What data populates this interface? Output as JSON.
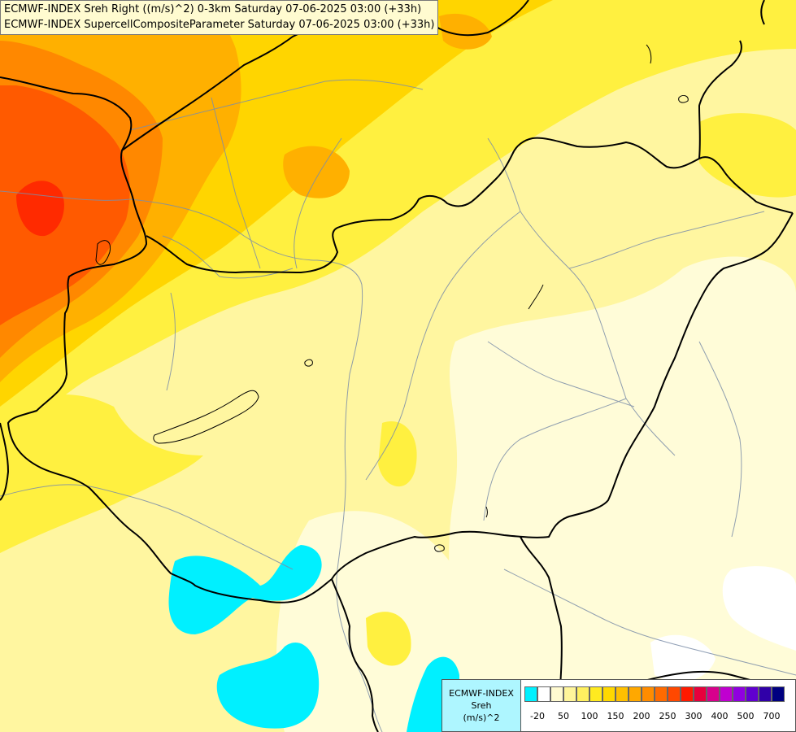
{
  "header": {
    "line1": "ECMWF-INDEX Sreh Right ((m/s)^2) 0-3km Saturday 07-06-2025 03:00 (+33h)",
    "line2": "ECMWF-INDEX SupercellCompositeParameter Saturday 07-06-2025 03:00 (+33h)"
  },
  "legend": {
    "line1": "ECMWF-INDEX",
    "line2": "Sreh",
    "line3": "(m/s)^2",
    "colors": [
      "#00f0ff",
      "#ffffff",
      "#fffad0",
      "#fff59a",
      "#fff060",
      "#ffea20",
      "#ffd800",
      "#ffc000",
      "#ffa800",
      "#ff8c00",
      "#ff6a00",
      "#ff4800",
      "#ff1a00",
      "#e8003c",
      "#d8008c",
      "#c000d0",
      "#9000e0",
      "#6000d0",
      "#3000a8",
      "#000080"
    ],
    "ticks": [
      "-20",
      "50",
      "100",
      "150",
      "200",
      "250",
      "300",
      "400",
      "500",
      "700"
    ]
  },
  "map_colors": {
    "very_light": "#fffcd8",
    "light": "#fff6a0",
    "yellow": "#fff040",
    "gold": "#ffd500",
    "orange": "#ffb000",
    "dark_orange": "#ff8800",
    "red_orange": "#ff5a00",
    "red": "#ff2a00",
    "cyan": "#00f0ff",
    "white": "#ffffff"
  }
}
